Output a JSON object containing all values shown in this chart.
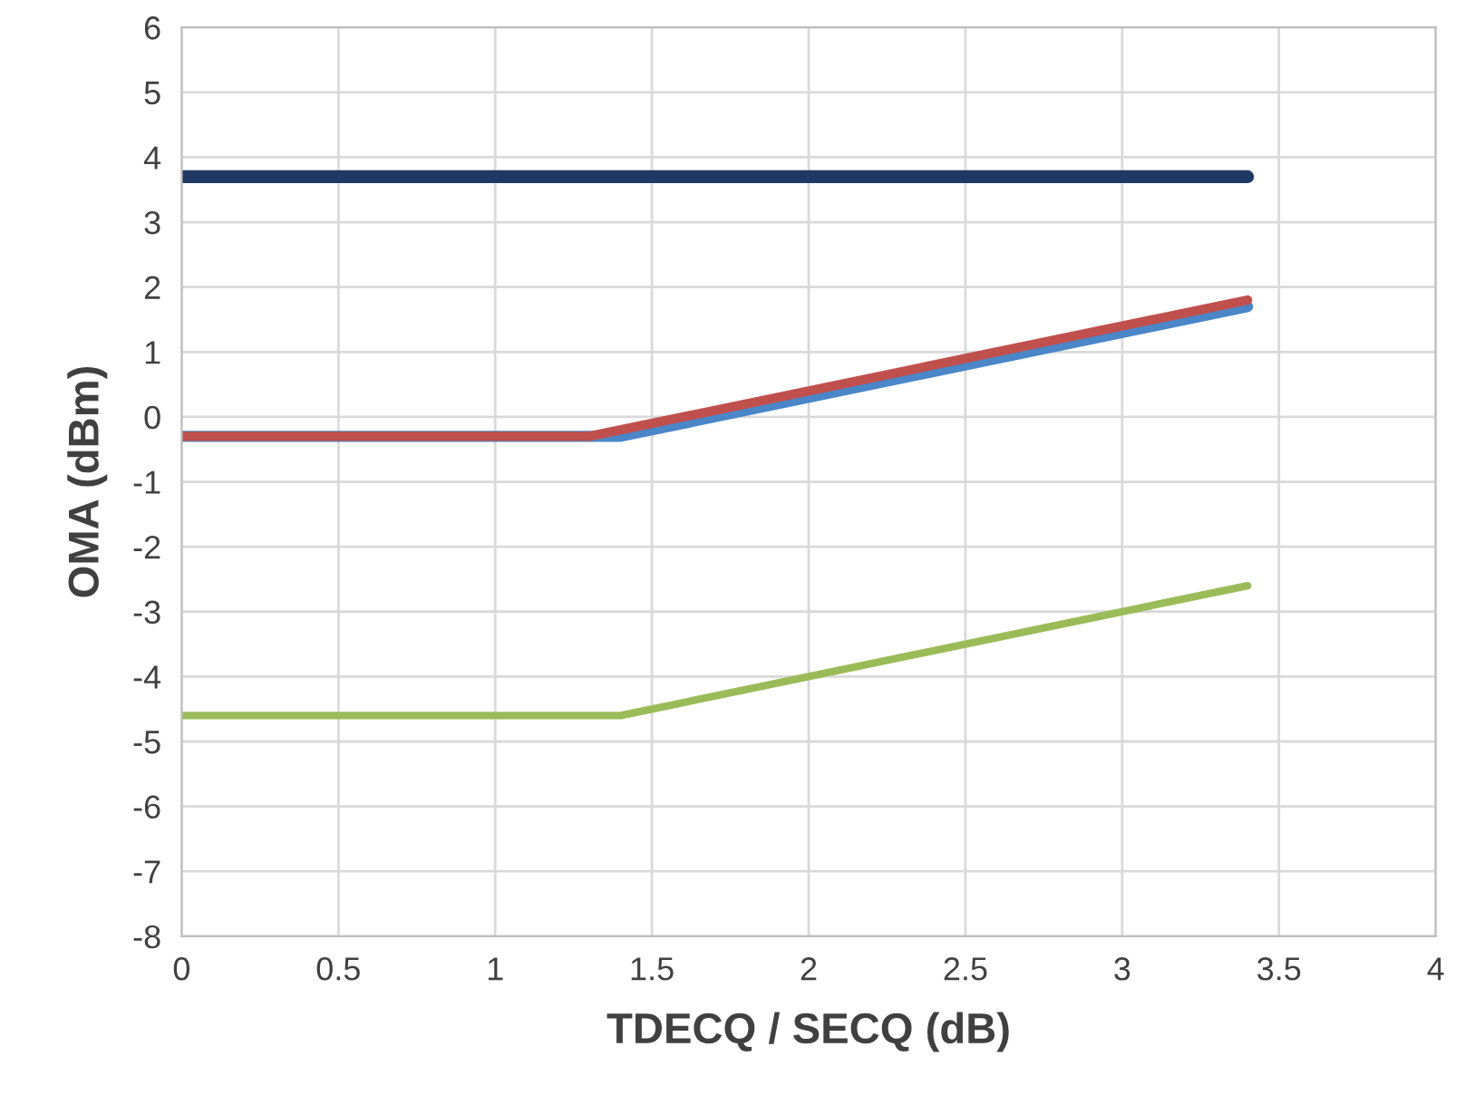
{
  "chart_data": {
    "type": "line",
    "xlabel": "TDECQ / SECQ (dB)",
    "ylabel": "OMA (dBm)",
    "xlim": [
      0,
      4
    ],
    "xticks": [
      0,
      0.5,
      1,
      1.5,
      2,
      2.5,
      3,
      3.5,
      4
    ],
    "ylim": [
      -8,
      6
    ],
    "yticks": [
      -8,
      -7,
      -6,
      -5,
      -4,
      -3,
      -2,
      -1,
      0,
      1,
      2,
      3,
      4,
      5,
      6
    ],
    "grid": true,
    "marker": "none",
    "line_style": "solid",
    "series": [
      {
        "color": "#203864",
        "x": [
          0,
          3.4
        ],
        "values": [
          3.7,
          3.7
        ]
      },
      {
        "color": "#4a86c8",
        "x": [
          0,
          1.4,
          3.4
        ],
        "values": [
          -0.3,
          -0.3,
          1.7
        ]
      },
      {
        "color": "#c0504d",
        "x": [
          0,
          1.3,
          3.4
        ],
        "values": [
          -0.3,
          -0.3,
          1.8
        ]
      },
      {
        "color": "#9bbb59",
        "x": [
          0,
          1.4,
          3.4
        ],
        "values": [
          -4.6,
          -4.6,
          -2.6
        ]
      }
    ]
  }
}
